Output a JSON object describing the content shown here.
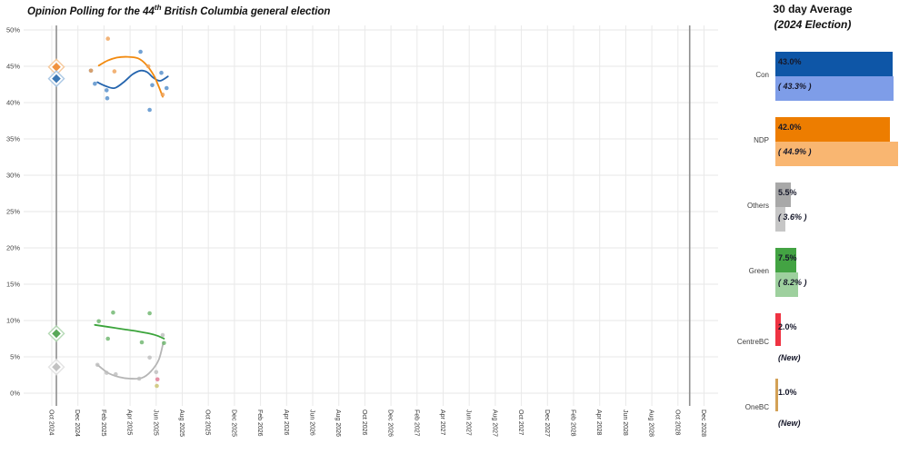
{
  "title": {
    "prefix": "Opinion Polling for the 44",
    "superscript": "th",
    "suffix": " British Columbia general election"
  },
  "legend": {
    "title_line1": "30 day Average",
    "title_line2": "(2024 Election)",
    "parties": [
      {
        "name": "Con",
        "current_label": "43.0%",
        "previous_label": "( 43.3% )",
        "current_value": 43.0,
        "previous_value": 43.3,
        "is_new": false,
        "color_dark": "#0e56a7",
        "color_light": "#7e9de8"
      },
      {
        "name": "NDP",
        "current_label": "42.0%",
        "previous_label": "( 44.9% )",
        "current_value": 42.0,
        "previous_value": 44.9,
        "is_new": false,
        "color_dark": "#ed7d00",
        "color_light": "#f9b671"
      },
      {
        "name": "Others",
        "current_label": "5.5%",
        "previous_label": "( 3.6% )",
        "current_value": 5.5,
        "previous_value": 3.6,
        "is_new": false,
        "color_dark": "#a8a8a8",
        "color_light": "#c6c6c6"
      },
      {
        "name": "Green",
        "current_label": "7.5%",
        "previous_label": "( 8.2% )",
        "current_value": 7.5,
        "previous_value": 8.2,
        "is_new": false,
        "color_dark": "#43a343",
        "color_light": "#9ed09e"
      },
      {
        "name": "CentreBC",
        "current_label": "2.0%",
        "previous_label": "(New)",
        "current_value": 2.0,
        "previous_value": null,
        "is_new": true,
        "color_dark": "#ef3342",
        "color_light": null
      },
      {
        "name": "OneBC",
        "current_label": "1.0%",
        "previous_label": "(New)",
        "current_value": 1.0,
        "previous_value": null,
        "is_new": true,
        "color_dark": "#d3a156",
        "color_light": null
      }
    ]
  },
  "chart_data": {
    "type": "scatter",
    "title": "Opinion Polling for the 44th British Columbia general election",
    "xlabel": "",
    "ylabel": "",
    "grid": true,
    "x_tick_labels": [
      "Oct 2024",
      "Dec 2024",
      "Feb 2025",
      "Apr 2025",
      "Jun 2025",
      "Aug 2025",
      "Oct 2025",
      "Dec 2025",
      "Feb 2026",
      "Apr 2026",
      "Jun 2026",
      "Aug 2026",
      "Oct 2026",
      "Dec 2026",
      "Feb 2027",
      "Apr 2027",
      "Jun 2027",
      "Aug 2027",
      "Oct 2027",
      "Dec 2027",
      "Feb 2028",
      "Apr 2028",
      "Jun 2028",
      "Aug 2028",
      "Oct 2028",
      "Dec 2028"
    ],
    "y_tick_labels": [
      "0%",
      "5%",
      "10%",
      "15%",
      "20%",
      "25%",
      "30%",
      "35%",
      "40%",
      "45%",
      "50%"
    ],
    "y_range": [
      0,
      50
    ],
    "election_lines_months_after_oct2024": [
      0.35,
      48.9
    ],
    "election_results_2024": [
      {
        "party": "NDP",
        "value": 44.9,
        "fill": "#f0923f",
        "halo": "#f6c492"
      },
      {
        "party": "Con",
        "value": 43.3,
        "fill": "#3c78b4",
        "halo": "#a2c3e2"
      },
      {
        "party": "Green",
        "value": 8.2,
        "fill": "#58a858",
        "halo": "#aed6ae"
      },
      {
        "party": "Others",
        "value": 3.6,
        "fill": "#c2c2c2",
        "halo": "#e0e0e0"
      }
    ],
    "series": [
      {
        "name": "Con",
        "line_color": "#2565ae",
        "marker_color": "#4f8bc9",
        "points": [
          [
            3.0,
            44.4
          ],
          [
            3.3,
            42.6
          ],
          [
            4.2,
            41.7
          ],
          [
            4.25,
            40.6
          ],
          [
            6.8,
            47.0
          ],
          [
            7.5,
            39.0
          ],
          [
            7.7,
            42.4
          ],
          [
            8.4,
            44.1
          ],
          [
            8.8,
            42.0
          ]
        ],
        "trend": [
          [
            3.5,
            42.8
          ],
          [
            4.1,
            42.3
          ],
          [
            4.8,
            42.0
          ],
          [
            5.5,
            42.8
          ],
          [
            6.2,
            43.9
          ],
          [
            6.8,
            44.4
          ],
          [
            7.3,
            44.2
          ],
          [
            7.8,
            43.4
          ],
          [
            8.3,
            43.0
          ],
          [
            8.9,
            43.6
          ]
        ]
      },
      {
        "name": "NDP",
        "line_color": "#f28a0f",
        "marker_color": "#efa055",
        "points": [
          [
            3.0,
            44.4
          ],
          [
            4.3,
            48.8
          ],
          [
            4.8,
            44.3
          ],
          [
            7.4,
            45.0
          ],
          [
            8.5,
            41.1
          ]
        ],
        "trend": [
          [
            3.6,
            45.1
          ],
          [
            4.3,
            45.8
          ],
          [
            5.0,
            46.2
          ],
          [
            5.8,
            46.3
          ],
          [
            6.6,
            46.1
          ],
          [
            7.2,
            45.3
          ],
          [
            7.8,
            43.8
          ],
          [
            8.2,
            42.2
          ],
          [
            8.5,
            40.8
          ]
        ]
      },
      {
        "name": "Green",
        "line_color": "#3ba43b",
        "marker_color": "#6ab46a",
        "points": [
          [
            3.6,
            9.9
          ],
          [
            4.3,
            7.5
          ],
          [
            4.7,
            11.1
          ],
          [
            6.9,
            7.0
          ],
          [
            7.5,
            11.0
          ],
          [
            8.6,
            6.9
          ]
        ],
        "trend": [
          [
            3.3,
            9.4
          ],
          [
            4.4,
            9.1
          ],
          [
            5.5,
            8.8
          ],
          [
            6.6,
            8.5
          ],
          [
            7.5,
            8.2
          ],
          [
            8.1,
            7.9
          ],
          [
            8.6,
            7.5
          ]
        ]
      },
      {
        "name": "Others",
        "line_color": "#b5b5b5",
        "marker_color": "#bdbdbd",
        "points": [
          [
            3.5,
            3.9
          ],
          [
            4.2,
            2.8
          ],
          [
            4.9,
            2.6
          ],
          [
            6.7,
            2.0
          ],
          [
            7.5,
            4.9
          ],
          [
            8.0,
            2.9
          ],
          [
            8.5,
            8.0
          ]
        ],
        "trend": [
          [
            3.5,
            3.9
          ],
          [
            4.3,
            2.8
          ],
          [
            5.2,
            2.2
          ],
          [
            6.0,
            2.0
          ],
          [
            6.9,
            2.1
          ],
          [
            7.6,
            3.0
          ],
          [
            8.2,
            4.6
          ],
          [
            8.55,
            7.0
          ]
        ]
      },
      {
        "name": "CentreBC",
        "line_color": null,
        "marker_color": "#e0758f",
        "points": [
          [
            8.1,
            1.9
          ]
        ],
        "trend": []
      },
      {
        "name": "OneBC",
        "line_color": null,
        "marker_color": "#c9c06b",
        "points": [
          [
            8.05,
            1.0
          ]
        ],
        "trend": []
      }
    ]
  }
}
